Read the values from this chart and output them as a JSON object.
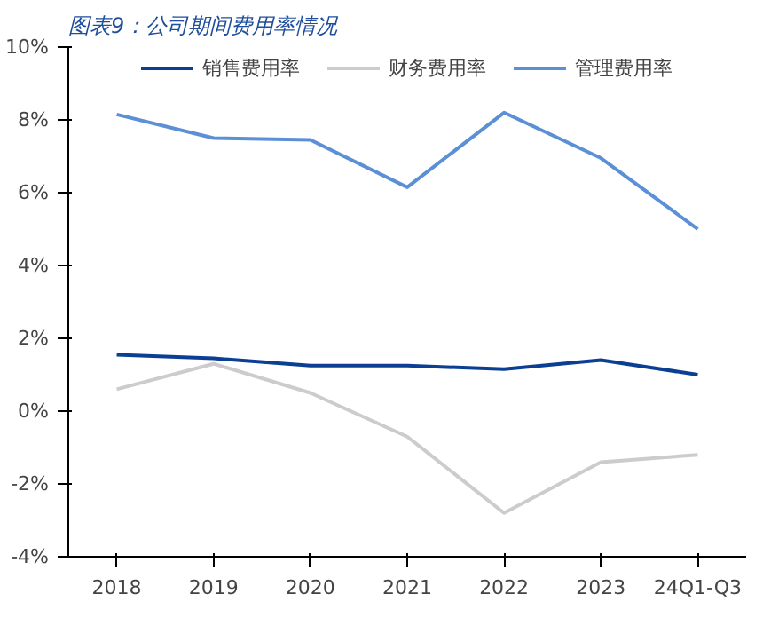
{
  "chart_data": {
    "type": "line",
    "title": "图表9：公司期间费用率情况",
    "categories": [
      "2018",
      "2019",
      "2020",
      "2021",
      "2022",
      "2023",
      "24Q1-Q3"
    ],
    "series": [
      {
        "name": "销售费用率",
        "color": "#0b3f94",
        "values": [
          1.55,
          1.45,
          1.25,
          1.25,
          1.15,
          1.4,
          1.0
        ]
      },
      {
        "name": "财务费用率",
        "color": "#cccccc",
        "values": [
          0.6,
          1.3,
          0.5,
          -0.7,
          -2.8,
          -1.4,
          -1.2
        ]
      },
      {
        "name": "管理费用率",
        "color": "#5b8fd6",
        "values": [
          8.15,
          7.5,
          7.45,
          6.15,
          8.2,
          6.95,
          5.0
        ]
      }
    ],
    "ylim": [
      -4,
      10
    ],
    "yticks": [
      {
        "value": -4,
        "label": "-4%"
      },
      {
        "value": -2,
        "label": "-2%"
      },
      {
        "value": 0,
        "label": "0%"
      },
      {
        "value": 2,
        "label": "2%"
      },
      {
        "value": 4,
        "label": "4%"
      },
      {
        "value": 6,
        "label": "6%"
      },
      {
        "value": 8,
        "label": "8%"
      },
      {
        "value": 10,
        "label": "10%"
      }
    ],
    "grid": false,
    "legend": "top",
    "marker": "none",
    "line_style": "solid"
  }
}
